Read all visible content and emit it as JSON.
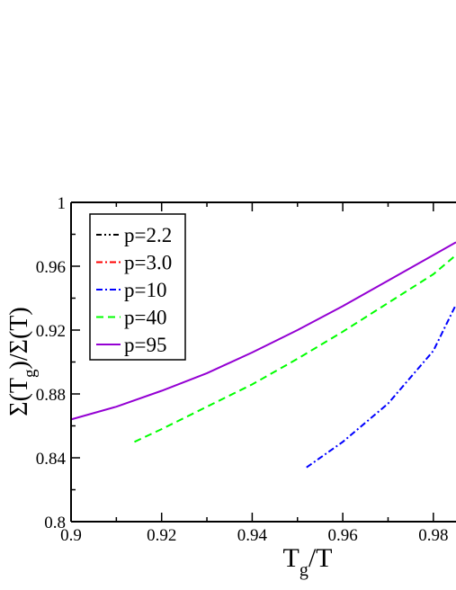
{
  "chart_data": {
    "type": "line",
    "xlabel": {
      "main": "T",
      "sub": "g",
      "tail": "/T"
    },
    "ylabel": {
      "pre": "Σ(T",
      "sub": "g",
      "post": ")/Σ(T)"
    },
    "xlim": [
      0.9,
      0.985
    ],
    "ylim": [
      0.8,
      1.0
    ],
    "xticks": [
      0.9,
      0.92,
      0.94,
      0.96,
      0.98
    ],
    "xtick_labels": [
      "0.9",
      "0.92",
      "0.94",
      "0.96",
      "0.98"
    ],
    "yticks": [
      0.8,
      0.84,
      0.88,
      0.92,
      0.96,
      1.0
    ],
    "ytick_labels": [
      "0.8",
      "0.84",
      "0.88",
      "0.92",
      "0.96",
      "1"
    ],
    "grid": false,
    "legend_position": "top-left",
    "series": [
      {
        "name": "p=2.2",
        "color": "#000000",
        "dash": "dash-dot-dot",
        "x": [],
        "y": []
      },
      {
        "name": "p=3.0",
        "color": "#ff0000",
        "dash": "dash-dot",
        "x": [],
        "y": []
      },
      {
        "name": "p=10",
        "color": "#0000ff",
        "dash": "dash-dot",
        "x": [
          0.952,
          0.96,
          0.97,
          0.98,
          0.985
        ],
        "y": [
          0.834,
          0.85,
          0.874,
          0.907,
          0.936
        ]
      },
      {
        "name": "p=40",
        "color": "#00ff00",
        "dash": "dashed",
        "x": [
          0.914,
          0.92,
          0.93,
          0.94,
          0.95,
          0.96,
          0.97,
          0.98,
          0.985
        ],
        "y": [
          0.85,
          0.858,
          0.872,
          0.886,
          0.902,
          0.919,
          0.937,
          0.955,
          0.967
        ]
      },
      {
        "name": "p=95",
        "color": "#9400d3",
        "dash": "solid",
        "x": [
          0.9,
          0.91,
          0.92,
          0.93,
          0.94,
          0.95,
          0.96,
          0.97,
          0.98,
          0.985
        ],
        "y": [
          0.864,
          0.872,
          0.882,
          0.893,
          0.906,
          0.92,
          0.935,
          0.951,
          0.967,
          0.975
        ]
      }
    ]
  }
}
